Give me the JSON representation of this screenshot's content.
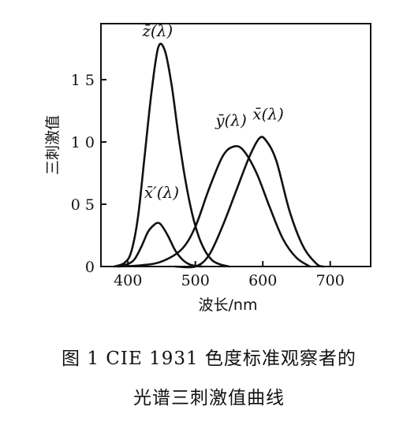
{
  "chart_data": {
    "type": "line",
    "xlabel": "波长/nm",
    "ylabel": "三刺激值",
    "xlim": [
      360,
      760
    ],
    "ylim": [
      0,
      1.95
    ],
    "x_ticks": [
      400,
      500,
      600,
      700
    ],
    "x_tick_labels": [
      "400",
      "500",
      "600",
      "700"
    ],
    "y_ticks": [
      0,
      0.5,
      1.0,
      1.5
    ],
    "y_tick_labels": [
      "0",
      "0 5",
      "1 0",
      "1 5"
    ],
    "grid": false,
    "series": [
      {
        "name": "z̄(λ)",
        "x": [
          380,
          395,
          405,
          415,
          425,
          435,
          445,
          455,
          465,
          475,
          485,
          495,
          505,
          515,
          525,
          535,
          550
        ],
        "y": [
          0.0,
          0.03,
          0.12,
          0.4,
          0.9,
          1.4,
          1.76,
          1.73,
          1.45,
          1.05,
          0.7,
          0.43,
          0.24,
          0.12,
          0.05,
          0.02,
          0.0
        ]
      },
      {
        "name": "x̄'(λ)",
        "x": [
          385,
          400,
          410,
          420,
          430,
          440,
          445,
          450,
          460,
          470,
          480,
          490,
          500,
          510
        ],
        "y": [
          0.0,
          0.02,
          0.06,
          0.16,
          0.28,
          0.34,
          0.35,
          0.33,
          0.24,
          0.13,
          0.06,
          0.02,
          0.005,
          0.0
        ]
      },
      {
        "name": "ȳ(λ)",
        "x": [
          385,
          420,
          450,
          480,
          500,
          520,
          540,
          555,
          570,
          590,
          610,
          630,
          650,
          670
        ],
        "y": [
          0.0,
          0.01,
          0.04,
          0.14,
          0.32,
          0.62,
          0.88,
          0.96,
          0.94,
          0.76,
          0.48,
          0.22,
          0.07,
          0.0
        ]
      },
      {
        "name": "x̄(λ)",
        "x": [
          470,
          500,
          520,
          540,
          560,
          580,
          595,
          605,
          620,
          640,
          660,
          680,
          690
        ],
        "y": [
          0.0,
          0.0,
          0.09,
          0.32,
          0.6,
          0.88,
          1.03,
          1.01,
          0.85,
          0.44,
          0.16,
          0.02,
          0.0
        ]
      }
    ],
    "curve_labels": [
      {
        "text": "z̄(λ)",
        "x": 444,
        "y": 1.85
      },
      {
        "text": "x̄′(λ)",
        "x": 450,
        "y": 0.55
      },
      {
        "text": "ȳ(λ)",
        "x": 553,
        "y": 1.13
      },
      {
        "text": "x̄(λ)",
        "x": 608,
        "y": 1.18
      }
    ]
  },
  "caption": {
    "line1": "图 1   CIE 1931 色度标准观察者的",
    "line2": "光谱三刺激值曲线"
  }
}
